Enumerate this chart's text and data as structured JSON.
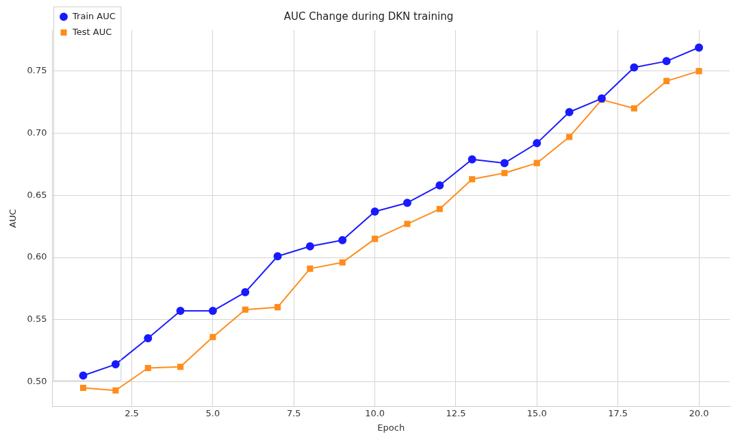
{
  "chart_data": {
    "type": "line",
    "title": "AUC Change during DKN training",
    "xlabel": "Epoch",
    "ylabel": "AUC",
    "x": [
      1,
      2,
      3,
      4,
      5,
      6,
      7,
      8,
      9,
      10,
      11,
      12,
      13,
      14,
      15,
      16,
      17,
      18,
      19,
      20
    ],
    "series": [
      {
        "name": "Train AUC",
        "color": "#1a1aff",
        "marker": "circle",
        "values": [
          0.505,
          0.514,
          0.535,
          0.557,
          0.557,
          0.572,
          0.601,
          0.609,
          0.614,
          0.637,
          0.644,
          0.658,
          0.679,
          0.676,
          0.692,
          0.717,
          0.728,
          0.753,
          0.758,
          0.769
        ]
      },
      {
        "name": "Test AUC",
        "color": "#ff8c1a",
        "marker": "square",
        "values": [
          0.495,
          0.493,
          0.511,
          0.512,
          0.536,
          0.558,
          0.56,
          0.591,
          0.596,
          0.615,
          0.627,
          0.639,
          0.663,
          0.668,
          0.676,
          0.697,
          0.727,
          0.72,
          0.742,
          0.75
        ]
      }
    ],
    "xlim": [
      0.05,
      20.95
    ],
    "ylim": [
      0.48,
      0.783
    ],
    "xticks": [
      {
        "value": 2.5,
        "label": "2.5"
      },
      {
        "value": 5,
        "label": "5.0"
      },
      {
        "value": 7.5,
        "label": "7.5"
      },
      {
        "value": 10,
        "label": "10.0"
      },
      {
        "value": 12.5,
        "label": "12.5"
      },
      {
        "value": 15,
        "label": "15.0"
      },
      {
        "value": 17.5,
        "label": "17.5"
      },
      {
        "value": 20,
        "label": "20.0"
      }
    ],
    "yticks": [
      {
        "value": 0.5,
        "label": "0.50"
      },
      {
        "value": 0.55,
        "label": "0.55"
      },
      {
        "value": 0.6,
        "label": "0.60"
      },
      {
        "value": 0.65,
        "label": "0.65"
      },
      {
        "value": 0.7,
        "label": "0.70"
      },
      {
        "value": 0.75,
        "label": "0.75"
      }
    ],
    "grid": true,
    "legend": "top left",
    "line_style": "solid"
  }
}
